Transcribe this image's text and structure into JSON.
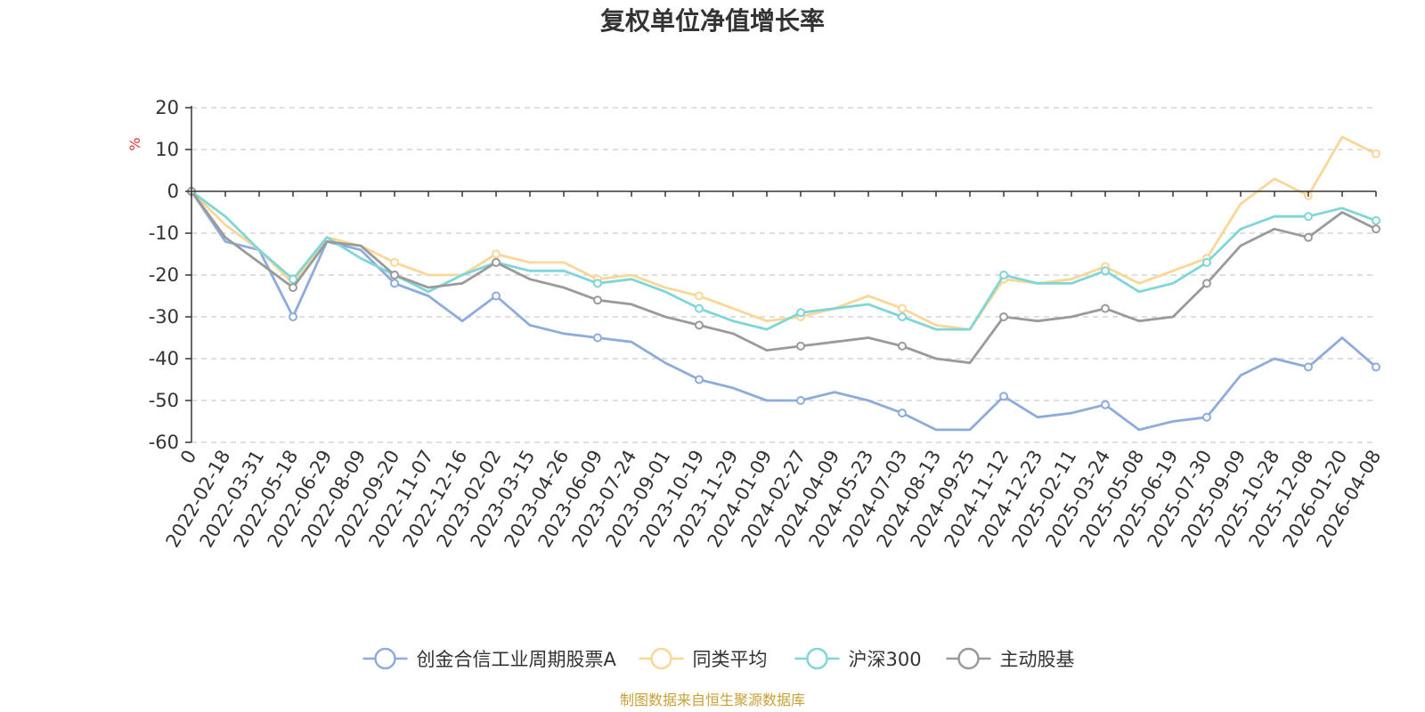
{
  "chart_data": {
    "type": "line",
    "title": "复权单位净值增长率",
    "ylabel": "%",
    "ylim": [
      -60,
      20
    ],
    "yticks": [
      20,
      10,
      0,
      -10,
      -20,
      -30,
      -40,
      -50,
      -60
    ],
    "xlabel": "",
    "categories": [
      "0",
      "2022-02-18",
      "2022-03-31",
      "2022-05-18",
      "2022-06-29",
      "2022-08-09",
      "2022-09-20",
      "2022-11-07",
      "2022-12-16",
      "2023-02-02",
      "2023-03-15",
      "2023-04-26",
      "2023-06-09",
      "2023-07-24",
      "2023-09-01",
      "2023-10-19",
      "2023-11-29",
      "2024-01-09",
      "2024-02-27",
      "2024-04-09",
      "2024-05-23",
      "2024-07-03",
      "2024-08-13",
      "2024-09-25",
      "2024-11-12",
      "2024-12-23",
      "2025-02-11",
      "2025-03-24",
      "2025-05-08",
      "2025-06-19",
      "2025-07-30",
      "2025-09-09",
      "2025-10-28",
      "2025-12-08",
      "2026-01-20",
      "2026-04-08"
    ],
    "series": [
      {
        "name": "创金合信工业周期股票A",
        "color": "#8eacdb",
        "values": [
          0,
          -12,
          -14,
          -30,
          -12,
          -14,
          -22,
          -25,
          -31,
          -25,
          -32,
          -34,
          -35,
          -36,
          -41,
          -45,
          -47,
          -50,
          -50,
          -48,
          -50,
          -53,
          -57,
          -57,
          -49,
          -54,
          -53,
          -51,
          -57,
          -55,
          -54,
          -44,
          -40,
          -42,
          -35,
          -42
        ]
      },
      {
        "name": "同类平均",
        "color": "#fad797",
        "values": [
          0,
          -8,
          -14,
          -22,
          -11,
          -13,
          -17,
          -20,
          -20,
          -15,
          -17,
          -17,
          -21,
          -20,
          -23,
          -25,
          -28,
          -31,
          -30,
          -28,
          -25,
          -28,
          -32,
          -33,
          -21,
          -22,
          -21,
          -18,
          -22,
          -19,
          -16,
          -3,
          3,
          -1,
          13,
          9
        ]
      },
      {
        "name": "沪深300",
        "color": "#7ed6d6",
        "values": [
          0,
          -6,
          -14,
          -21,
          -11,
          -16,
          -20,
          -24,
          -20,
          -17,
          -19,
          -19,
          -22,
          -21,
          -24,
          -28,
          -31,
          -33,
          -29,
          -28,
          -27,
          -30,
          -33,
          -33,
          -20,
          -22,
          -22,
          -19,
          -24,
          -22,
          -17,
          -9,
          -6,
          -6,
          -4,
          -7
        ]
      },
      {
        "name": "主动股基",
        "color": "#9a9a9a",
        "values": [
          0,
          -11,
          -17,
          -23,
          -12,
          -13,
          -20,
          -23,
          -22,
          -17,
          -21,
          -23,
          -26,
          -27,
          -30,
          -32,
          -34,
          -38,
          -37,
          -36,
          -35,
          -37,
          -40,
          -41,
          -30,
          -31,
          -30,
          -28,
          -31,
          -30,
          -22,
          -13,
          -9,
          -11,
          -5,
          -9
        ]
      }
    ]
  },
  "source_text": "制图数据来自恒生聚源数据库"
}
